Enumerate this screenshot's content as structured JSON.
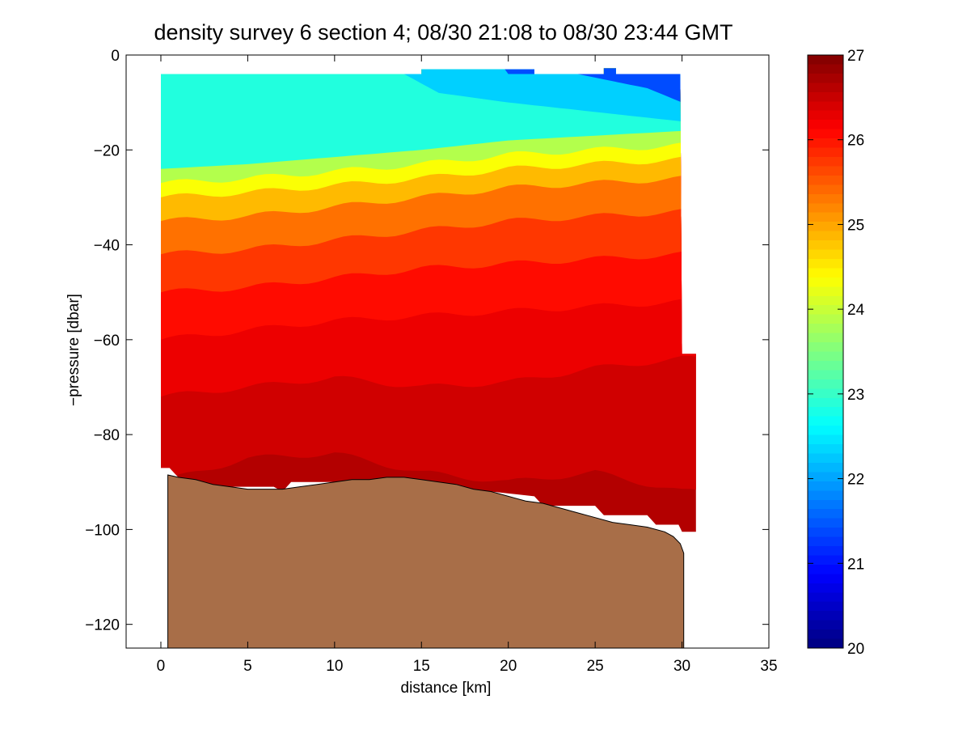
{
  "chart_data": {
    "type": "heatmap",
    "title": "density survey 6 section 4; 08/30 21:08 to 08/30 23:44 GMT",
    "xlabel": "distance [km]",
    "ylabel": "−pressure [dbar]",
    "xlim": [
      -2,
      35
    ],
    "ylim": [
      -125,
      0
    ],
    "xticks": [
      0,
      5,
      10,
      15,
      20,
      25,
      30,
      35
    ],
    "xtick_labels": [
      "0",
      "5",
      "10",
      "15",
      "20",
      "25",
      "30",
      "35"
    ],
    "yticks": [
      0,
      -20,
      -40,
      -60,
      -80,
      -100,
      -120
    ],
    "ytick_labels": [
      "0",
      "−20",
      "−40",
      "−60",
      "−80",
      "−100",
      "−120"
    ],
    "colorbar": {
      "colormap": "jet",
      "clim": [
        20,
        27
      ],
      "ticks": [
        20,
        21,
        22,
        23,
        24,
        25,
        26,
        27
      ],
      "tick_labels": [
        "20",
        "21",
        "22",
        "23",
        "24",
        "25",
        "26",
        "27"
      ]
    },
    "field": {
      "x_range_km": [
        0,
        30
      ],
      "surface_depth_dbar": -4,
      "profile_bottom_depths": [
        [
          0,
          -87
        ],
        [
          0.5,
          -87
        ],
        [
          1,
          -89
        ],
        [
          3,
          -91
        ],
        [
          6.5,
          -91
        ],
        [
          7,
          -92
        ],
        [
          7.5,
          -90
        ],
        [
          15,
          -90
        ],
        [
          17,
          -91
        ],
        [
          19,
          -92
        ],
        [
          21.5,
          -93
        ],
        [
          22,
          -95
        ],
        [
          25,
          -95
        ],
        [
          25.5,
          -97
        ],
        [
          28,
          -97
        ],
        [
          28.5,
          -99
        ],
        [
          29.8,
          -99
        ],
        [
          30,
          -100.5
        ],
        [
          30.8,
          -100.5
        ],
        [
          30.8,
          -63
        ],
        [
          30,
          -63
        ]
      ],
      "isopycnal_depths": [
        {
          "sigma": 22.9,
          "x": [
            0,
            10,
            15,
            20,
            25,
            30
          ],
          "depth": [
            -4,
            -4,
            -4,
            -4,
            -4,
            -4
          ]
        },
        {
          "sigma": 22.4,
          "x": [
            0,
            14,
            16,
            20,
            25,
            30
          ],
          "depth": [
            -4,
            -4,
            -8,
            -10,
            -12,
            -14
          ]
        },
        {
          "sigma": 21.5,
          "x": [
            20,
            24,
            28,
            30
          ],
          "depth": [
            -4,
            -4,
            -7,
            -10
          ]
        },
        {
          "sigma": 24.0,
          "x": [
            0,
            5,
            10,
            15,
            20,
            25,
            30
          ],
          "depth": [
            -27,
            -26,
            -24.5,
            -23,
            -21,
            -20,
            -19
          ]
        },
        {
          "sigma": 24.5,
          "x": [
            0,
            5,
            10,
            15,
            20,
            25,
            30
          ],
          "depth": [
            -30,
            -29,
            -27.5,
            -26,
            -24,
            -23,
            -22
          ]
        },
        {
          "sigma": 25.0,
          "x": [
            0,
            5,
            10,
            15,
            20,
            25,
            30
          ],
          "depth": [
            -35,
            -34,
            -32,
            -30,
            -28,
            -27,
            -26
          ]
        },
        {
          "sigma": 25.5,
          "x": [
            0,
            5,
            10,
            15,
            20,
            25,
            30
          ],
          "depth": [
            -42,
            -41,
            -39,
            -37,
            -35,
            -34,
            -33
          ]
        },
        {
          "sigma": 25.9,
          "x": [
            0,
            5,
            10,
            15,
            20,
            25,
            30
          ],
          "depth": [
            -50,
            -49,
            -47,
            -45,
            -44,
            -43,
            -42
          ]
        },
        {
          "sigma": 26.2,
          "x": [
            0,
            5,
            10,
            15,
            20,
            25,
            30
          ],
          "depth": [
            -60,
            -58,
            -56,
            -55,
            -54,
            -53,
            -52
          ]
        },
        {
          "sigma": 26.4,
          "x": [
            0,
            5,
            10,
            15,
            20,
            25,
            30
          ],
          "depth": [
            -72,
            -70,
            -68,
            -70,
            -69,
            -66,
            -64
          ]
        },
        {
          "sigma": 26.6,
          "x": [
            0,
            5,
            10,
            15,
            20,
            25,
            30
          ],
          "depth": [
            -90,
            -85,
            -84,
            -88,
            -90,
            -88,
            -92
          ]
        }
      ]
    },
    "bathymetry": {
      "color": "#a86e48",
      "x": [
        0.4,
        1,
        2,
        3,
        4,
        5,
        6,
        7,
        8,
        9,
        10,
        11,
        12,
        13,
        14,
        15,
        16,
        17,
        18,
        19,
        20,
        21,
        22,
        23,
        24,
        25,
        26,
        27,
        28,
        29,
        29.5,
        29.9,
        30.1,
        30.1
      ],
      "depth": [
        -88.5,
        -89,
        -89.5,
        -90.5,
        -91,
        -91.5,
        -91.5,
        -91.5,
        -91,
        -90.5,
        -90,
        -89.5,
        -89.5,
        -89,
        -89,
        -89.5,
        -90,
        -90.5,
        -91.5,
        -92,
        -93,
        -94,
        -94.5,
        -95.5,
        -96.5,
        -97.5,
        -98.5,
        -99,
        -99.5,
        -100.5,
        -101.5,
        -103,
        -105,
        -125
      ]
    }
  }
}
